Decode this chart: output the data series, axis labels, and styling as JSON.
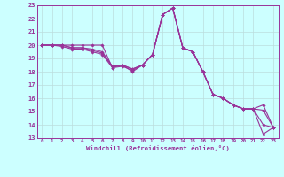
{
  "xlabel": "Windchill (Refroidissement éolien,°C)",
  "line_color": "#993399",
  "bg_color": "#ccffff",
  "grid_color": "#bbdddd",
  "xlim": [
    -0.5,
    23.5
  ],
  "ylim": [
    13,
    23
  ],
  "yticks": [
    13,
    14,
    15,
    16,
    17,
    18,
    19,
    20,
    21,
    22,
    23
  ],
  "xticks": [
    0,
    1,
    2,
    3,
    4,
    5,
    6,
    7,
    8,
    9,
    10,
    11,
    12,
    13,
    14,
    15,
    16,
    17,
    18,
    19,
    20,
    21,
    22,
    23
  ],
  "lines": [
    [
      0,
      20,
      1,
      20,
      2,
      20,
      3,
      20,
      4,
      20,
      5,
      20,
      6,
      20,
      7,
      18.3,
      8,
      18.5,
      9,
      18.0,
      10,
      18.5,
      11,
      19.3,
      12,
      22.3,
      13,
      22.8,
      14,
      19.8,
      15,
      19.5,
      16,
      18.0,
      17,
      16.3,
      18,
      16.0,
      19,
      15.5,
      20,
      15.2,
      21,
      15.2,
      22,
      13.3,
      23,
      13.8
    ],
    [
      0,
      20,
      1,
      20,
      2,
      20,
      3,
      19.8,
      4,
      19.8,
      5,
      19.7,
      6,
      19.5,
      7,
      18.4,
      8,
      18.5,
      9,
      18.2,
      10,
      18.5,
      11,
      19.3,
      12,
      22.3,
      13,
      22.8,
      14,
      19.8,
      15,
      19.5,
      16,
      18.0,
      17,
      16.3,
      18,
      16.0,
      19,
      15.5,
      20,
      15.2,
      21,
      15.2,
      22,
      14.0,
      23,
      13.8
    ],
    [
      0,
      20,
      1,
      20,
      2,
      20,
      3,
      19.8,
      4,
      19.8,
      5,
      19.6,
      6,
      19.4,
      7,
      18.4,
      8,
      18.5,
      9,
      18.2,
      10,
      18.5,
      11,
      19.3,
      12,
      22.3,
      13,
      22.8,
      14,
      19.8,
      15,
      19.5,
      16,
      18.0,
      17,
      16.3,
      18,
      16.0,
      19,
      15.5,
      20,
      15.2,
      21,
      15.2,
      22,
      15.1,
      23,
      13.8
    ],
    [
      0,
      20,
      1,
      20,
      2,
      19.9,
      3,
      19.7,
      4,
      19.7,
      5,
      19.5,
      6,
      19.3,
      7,
      18.3,
      8,
      18.4,
      9,
      18.1,
      10,
      18.5,
      11,
      19.3,
      12,
      22.3,
      13,
      22.8,
      14,
      19.8,
      15,
      19.5,
      16,
      18.0,
      17,
      16.3,
      18,
      16.0,
      19,
      15.5,
      20,
      15.2,
      21,
      15.2,
      22,
      15.5,
      23,
      13.8
    ]
  ]
}
